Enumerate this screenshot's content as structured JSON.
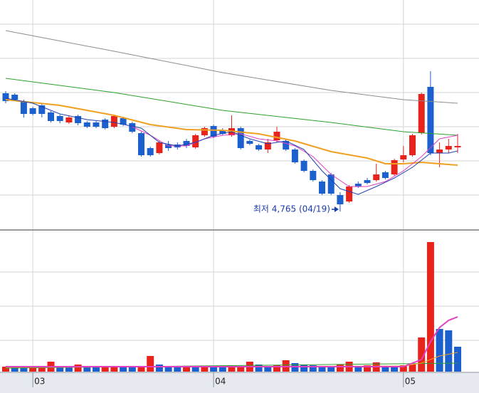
{
  "chart_data": {
    "type": "candlestick",
    "categories": [
      null,
      null,
      null,
      null,
      null,
      null,
      null,
      null,
      null,
      null,
      null,
      null,
      null,
      null,
      null,
      null,
      null,
      null,
      null,
      null,
      null,
      null,
      null,
      null,
      null,
      null,
      null,
      null,
      null,
      null,
      null,
      null,
      null,
      null,
      null,
      null,
      null,
      null,
      null,
      null,
      null,
      null,
      null,
      null,
      null,
      null,
      null,
      null,
      null,
      null,
      null
    ],
    "open": [
      5595,
      5585,
      5535,
      5490,
      5510,
      5460,
      5435,
      5390,
      5435,
      5390,
      5390,
      5410,
      5360,
      5420,
      5385,
      5315,
      5210,
      5175,
      5235,
      5235,
      5260,
      5215,
      5300,
      5365,
      5335,
      5300,
      5350,
      5260,
      5230,
      5200,
      5265,
      5260,
      5200,
      5120,
      5050,
      4975,
      5025,
      4880,
      4835,
      4960,
      4985,
      4985,
      5040,
      5025,
      5130,
      5160,
      5315,
      5640,
      5175,
      5200,
      5215
    ],
    "high": [
      5610,
      5595,
      5550,
      5500,
      5525,
      5470,
      5445,
      5435,
      5445,
      5400,
      5400,
      5420,
      5445,
      5430,
      5395,
      5325,
      5220,
      5260,
      5260,
      5250,
      5275,
      5310,
      5360,
      5375,
      5350,
      5440,
      5360,
      5270,
      5240,
      5275,
      5360,
      5270,
      5210,
      5130,
      5060,
      4985,
      5035,
      4900,
      4950,
      4975,
      5000,
      5100,
      5050,
      5135,
      5225,
      5310,
      5600,
      5750,
      5250,
      5275,
      5310
    ],
    "low": [
      5525,
      5540,
      5425,
      5440,
      5425,
      5390,
      5385,
      5380,
      5370,
      5350,
      5350,
      5340,
      5350,
      5365,
      5315,
      5150,
      5150,
      5165,
      5190,
      5200,
      5210,
      5205,
      5290,
      5280,
      5300,
      5290,
      5200,
      5230,
      5190,
      5175,
      5250,
      5190,
      5100,
      5040,
      4975,
      4880,
      4880,
      4765,
      4825,
      4930,
      4955,
      4975,
      4990,
      5015,
      5110,
      5150,
      5305,
      5160,
      5075,
      5175,
      5175
    ],
    "close": [
      5540,
      5550,
      5450,
      5450,
      5450,
      5400,
      5400,
      5425,
      5385,
      5360,
      5360,
      5350,
      5435,
      5375,
      5325,
      5160,
      5160,
      5250,
      5210,
      5215,
      5225,
      5300,
      5350,
      5290,
      5310,
      5350,
      5210,
      5240,
      5200,
      5250,
      5325,
      5200,
      5110,
      5050,
      4985,
      4890,
      4890,
      4815,
      4940,
      4940,
      4965,
      5025,
      5000,
      5125,
      5160,
      5300,
      5590,
      5175,
      5200,
      5225,
      5225
    ],
    "volume": [
      7000,
      6000,
      6000,
      7000,
      8000,
      14000,
      7000,
      6000,
      10000,
      7000,
      6000,
      7000,
      8000,
      7000,
      7000,
      8000,
      22000,
      10000,
      8000,
      6000,
      7000,
      7000,
      8000,
      7000,
      6000,
      7000,
      8000,
      14000,
      10000,
      8000,
      9000,
      16000,
      12000,
      10000,
      9000,
      8000,
      7000,
      10000,
      14000,
      8000,
      9000,
      13000,
      8000,
      7000,
      9000,
      10000,
      48000,
      182000,
      60000,
      58000,
      35000
    ],
    "up_color": "#e8231c",
    "down_color": "#1c5fcf",
    "ylim": [
      4640,
      6250
    ],
    "yticks": [
      6080,
      5840,
      5600,
      5360,
      5120,
      4880
    ],
    "volume_ylim": [
      0,
      194000
    ],
    "volume_yticks": [
      140000,
      92000,
      44000
    ],
    "xticks": [
      {
        "value": 3,
        "label": "03"
      },
      {
        "value": 23,
        "label": "04"
      },
      {
        "value": 44,
        "label": "05"
      }
    ],
    "lines": [
      {
        "color": "#8c8c8c",
        "x": [
          0,
          12,
          24,
          36,
          44,
          50
        ],
        "values": [
          6035,
          5890,
          5740,
          5615,
          5550,
          5525
        ]
      },
      {
        "color": "#2ca02c",
        "x": [
          0,
          12,
          24,
          36,
          44,
          50
        ],
        "values": [
          5700,
          5600,
          5475,
          5390,
          5325,
          5300
        ]
      },
      {
        "color": "#f0a020",
        "x": [
          0,
          6,
          12,
          16,
          20,
          24,
          28,
          32,
          36,
          40,
          42,
          44,
          46,
          48,
          50
        ],
        "values": [
          5550,
          5510,
          5440,
          5375,
          5340,
          5335,
          5310,
          5260,
          5185,
          5140,
          5100,
          5100,
          5110,
          5100,
          5090
        ]
      },
      {
        "color": "#e040c0",
        "x": [
          14,
          16,
          18,
          20,
          22,
          24,
          26,
          28,
          30,
          32,
          34,
          36,
          38,
          40,
          42,
          44,
          46,
          48,
          50
        ],
        "values": [
          5360,
          5300,
          5225,
          5225,
          5275,
          5300,
          5310,
          5275,
          5260,
          5225,
          5150,
          5025,
          4940,
          4940,
          4975,
          5050,
          5150,
          5275,
          5300
        ]
      },
      {
        "color": "#2040b0",
        "x": [
          0,
          3,
          6,
          9,
          12,
          15,
          17,
          19,
          21,
          23,
          25,
          27,
          29,
          31,
          33,
          35,
          37,
          39,
          41,
          43,
          45,
          47,
          49,
          50
        ],
        "values": [
          5560,
          5525,
          5450,
          5410,
          5390,
          5350,
          5250,
          5225,
          5250,
          5300,
          5325,
          5275,
          5240,
          5260,
          5200,
          5050,
          4925,
          4885,
          4940,
          5000,
          5075,
          5175,
          5175,
          5190
        ]
      }
    ],
    "volume_lines": [
      {
        "color": "#2ca02c",
        "x": [
          0,
          50
        ],
        "values": [
          5000,
          12000
        ]
      },
      {
        "color": "#f0a020",
        "x": [
          0,
          44,
          46,
          48,
          50
        ],
        "values": [
          6000,
          8000,
          12000,
          22000,
          27000
        ]
      },
      {
        "color": "#e040c0",
        "x": [
          0,
          44,
          46,
          47,
          48,
          49,
          50
        ],
        "values": [
          7000,
          7000,
          17000,
          42000,
          62000,
          72000,
          77000
        ]
      }
    ],
    "annotation": {
      "text": "최저 4,765 (04/19)",
      "index": 37
    }
  }
}
